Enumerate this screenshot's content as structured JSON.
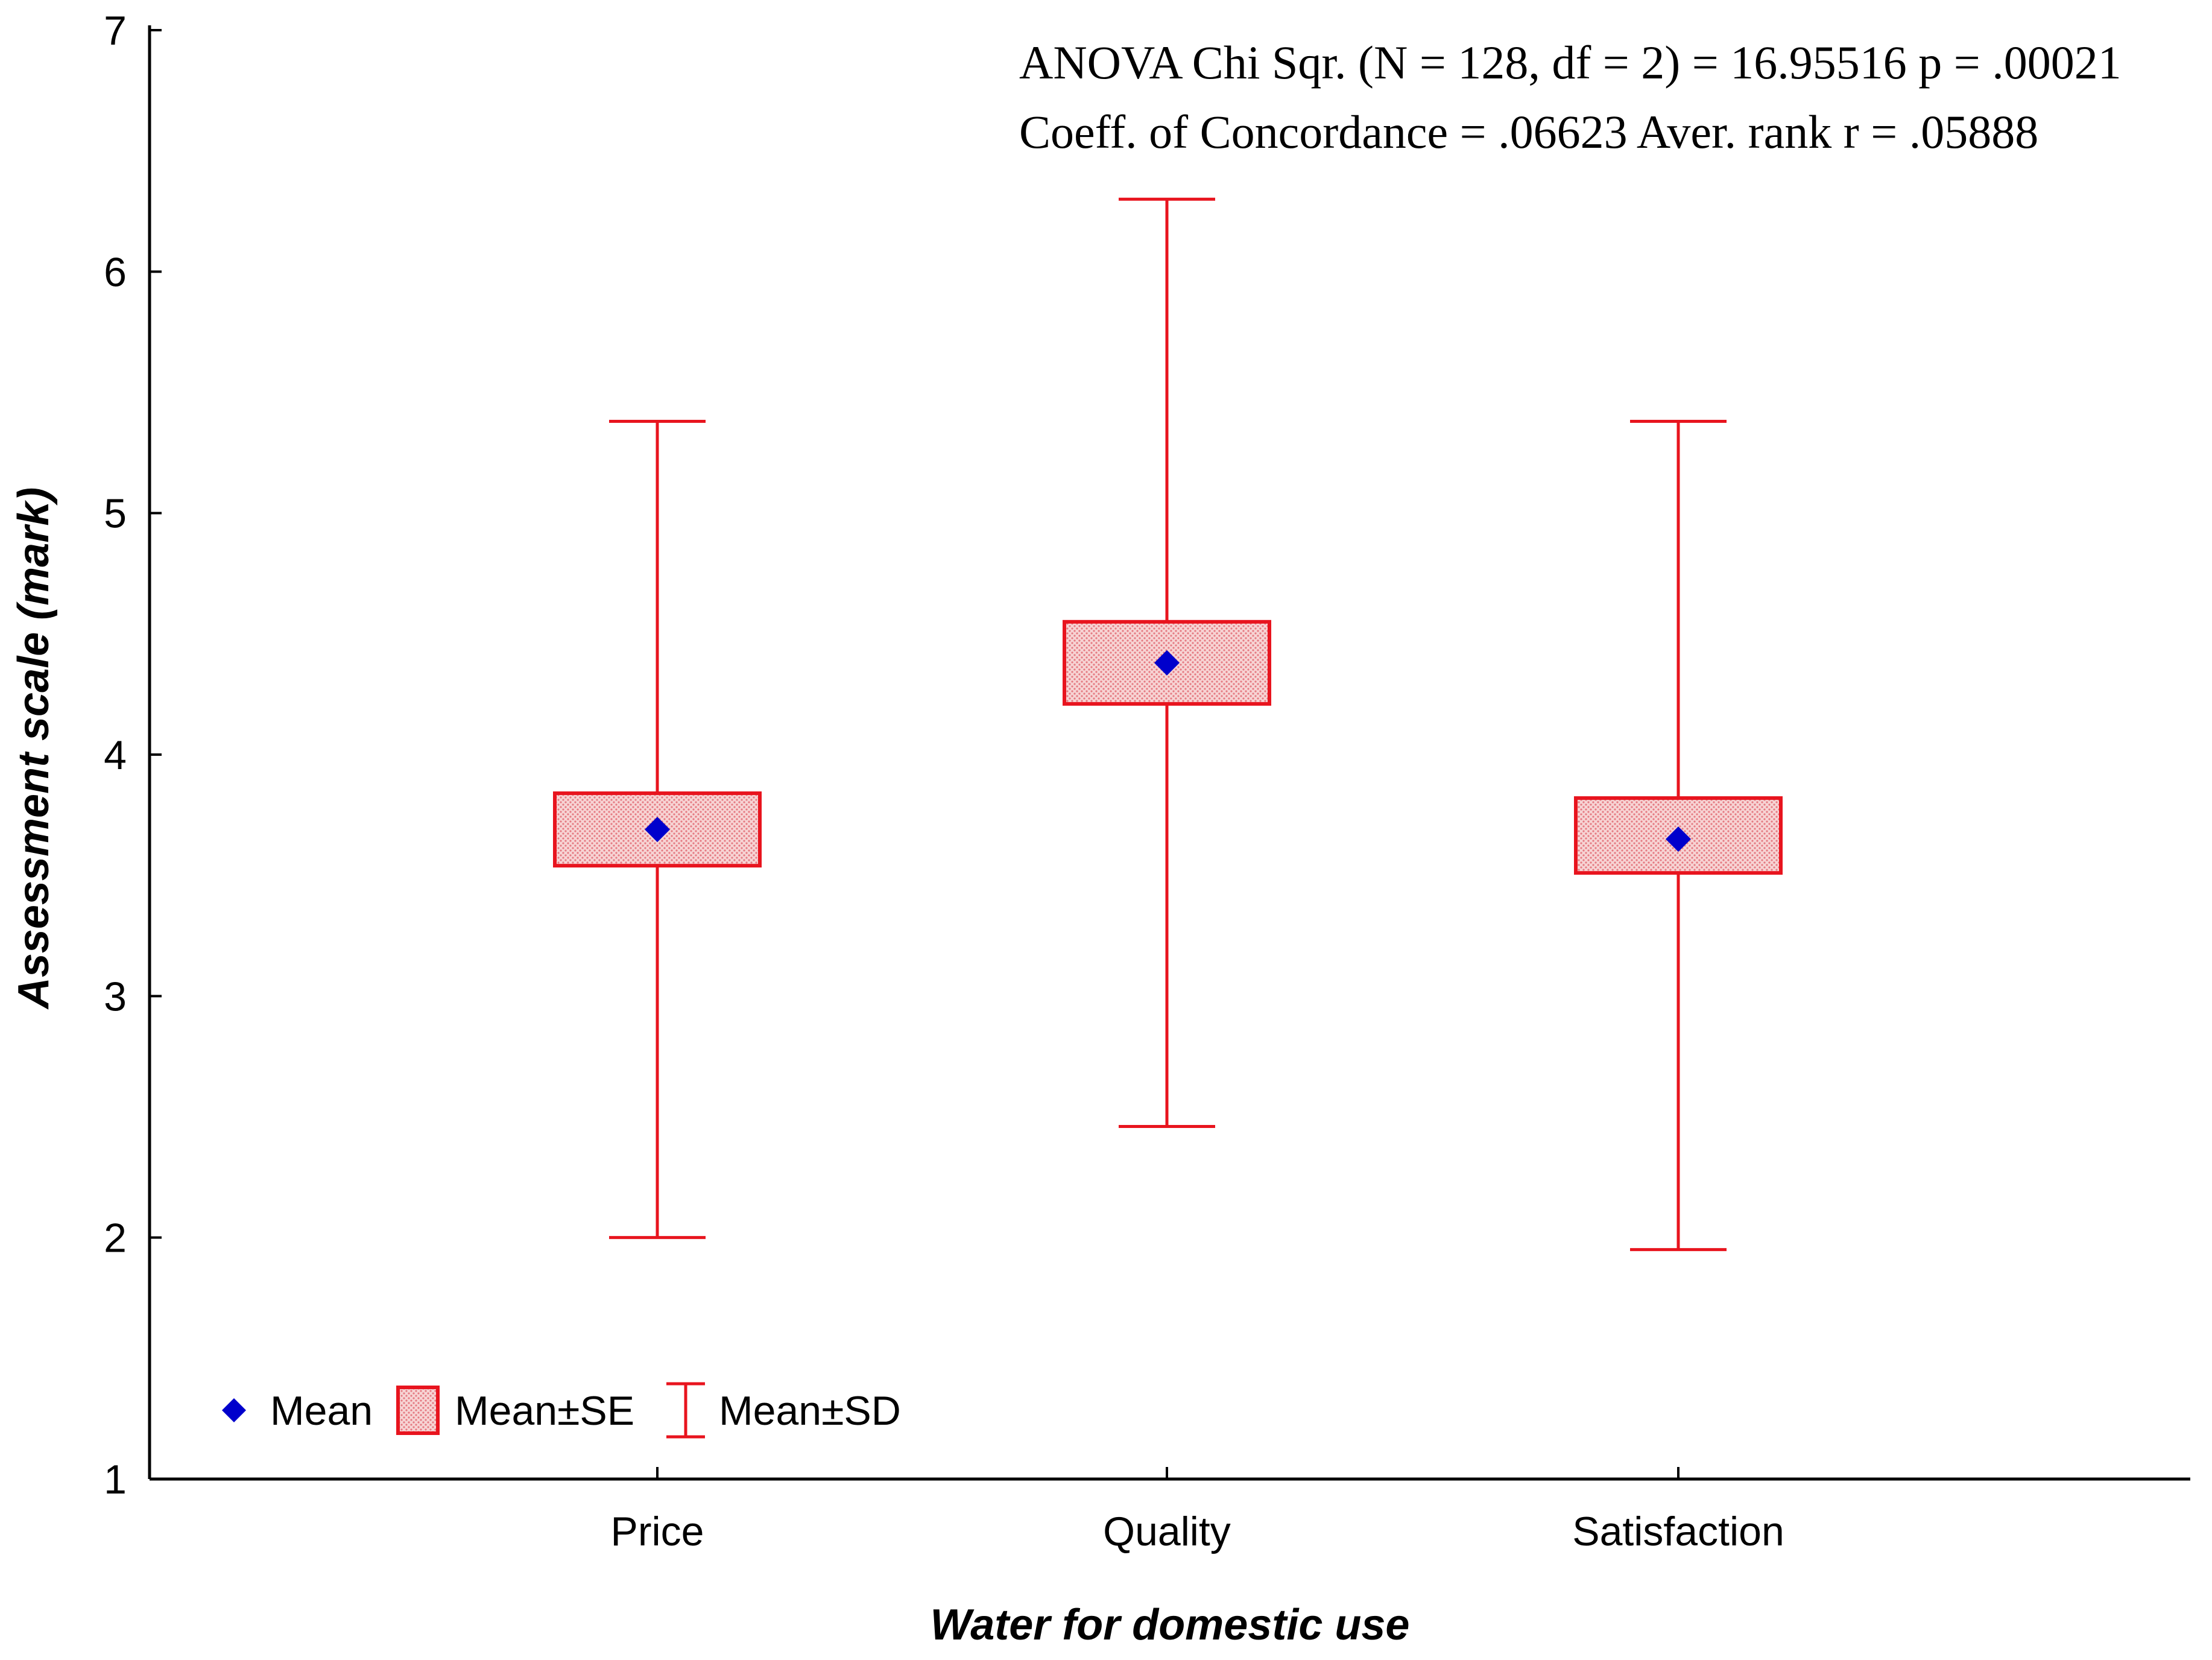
{
  "chart_data": {
    "type": "box",
    "categories": [
      "Price",
      "Quality",
      "Satisfaction"
    ],
    "series": [
      {
        "name": "Mean",
        "values": [
          3.69,
          4.38,
          3.65
        ]
      },
      {
        "name": "Mean±SE",
        "low": [
          3.54,
          4.21,
          3.51
        ],
        "high": [
          3.84,
          4.55,
          3.82
        ]
      },
      {
        "name": "Mean±SD",
        "low": [
          2.0,
          2.46,
          1.95
        ],
        "high": [
          5.38,
          6.3,
          5.38
        ]
      }
    ],
    "xlabel": "Water for domestic use",
    "ylabel": "Assessment scale (mark)",
    "ylim": [
      1,
      7
    ],
    "yticks": [
      "1",
      "2",
      "3",
      "4",
      "5",
      "6",
      "7"
    ],
    "annotations": [
      "ANOVA Chi Sqr. (N = 128, df = 2) = 16.95516 p = .00021",
      "Coeff. of Concordance = .06623 Aver. rank r = .05888"
    ],
    "legend": {
      "placement": "bottom-left",
      "entries": [
        "Mean",
        "Mean±SE",
        "Mean±SD"
      ]
    },
    "grid": false,
    "colors": {
      "mean": "#0000CC",
      "se_fill": "#F9C8C8",
      "whisker": "#E8141E",
      "axis": "#000000"
    }
  }
}
